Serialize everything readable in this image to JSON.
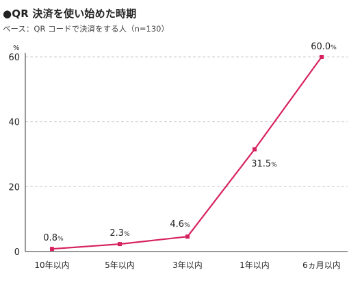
{
  "chart_data": {
    "type": "line",
    "title": "●QR 決済を使い始めた時期",
    "subtitle": "ベース：QR コードで決済をする人（n=130）",
    "y_unit": "%",
    "categories": [
      "10年以内",
      "5年以内",
      "3年以内",
      "1年以内",
      "6ヵ月以内"
    ],
    "series": [
      {
        "values": [
          0.8,
          2.3,
          4.6,
          31.5,
          60.0
        ]
      }
    ],
    "data_labels": [
      "0.8",
      "2.3",
      "4.6",
      "31.5",
      "60.0"
    ],
    "y_ticks": [
      "0",
      "20",
      "40",
      "60"
    ],
    "ylim": [
      0,
      60
    ],
    "grid": true,
    "colors": {
      "line": "#d6225f",
      "grid": "#cccccc",
      "axis": "#333333"
    }
  }
}
